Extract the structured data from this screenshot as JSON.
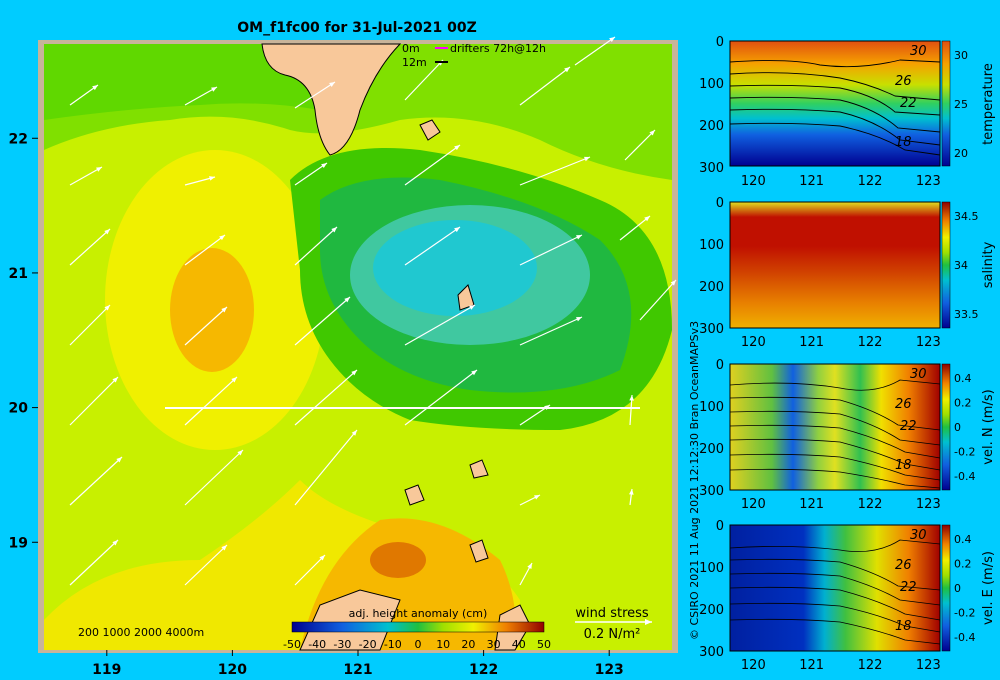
{
  "title": "OM_f1fc00 for 31-Jul-2021 00Z",
  "legend_top": {
    "depth_0": "0m",
    "depth_12": "12m",
    "drifters": "drifters 72h@12h"
  },
  "credit": "© CSIRO 2021   11 Aug 2021 12:12:30 Bran OceanMAPSv3",
  "wind_stress": {
    "label": "wind stress",
    "value": "0.2 N/m²"
  },
  "bathy_legend": "200  1000  2000  4000m",
  "colors": {
    "background": "#00ccff",
    "land": "#f8c89a"
  },
  "chart_data": [
    {
      "type": "heatmap",
      "title": "OM_f1fc00 for 31-Jul-2021 00Z",
      "x_ticks": [
        "119",
        "120",
        "121",
        "122",
        "123"
      ],
      "y_ticks": [
        "19",
        "20",
        "21",
        "22"
      ],
      "xlim": [
        118.5,
        123.5
      ],
      "ylim": [
        18.2,
        22.7
      ],
      "colorbar": {
        "label": "adj. height anomaly (cm)",
        "ticks": [
          "-50",
          "-40",
          "-30",
          "-20",
          "-10",
          "0",
          "10",
          "20",
          "30",
          "40",
          "50"
        ]
      },
      "section_line": {
        "lat": 20.0,
        "lon_start": 119.5,
        "lon_end": 123.2
      }
    },
    {
      "type": "heatmap",
      "ylabel": "temperature",
      "x_ticks": [
        "120",
        "121",
        "122",
        "123"
      ],
      "y_ticks": [
        "0",
        "100",
        "200",
        "300"
      ],
      "colorbar_ticks": [
        "30",
        "25",
        "20"
      ],
      "contour_labels": [
        "30",
        "26",
        "22",
        "18"
      ]
    },
    {
      "type": "heatmap",
      "ylabel": "salinity",
      "x_ticks": [
        "120",
        "121",
        "122",
        "123"
      ],
      "y_ticks": [
        "0",
        "100",
        "200",
        "300"
      ],
      "colorbar_ticks": [
        "34.5",
        "34",
        "33.5"
      ]
    },
    {
      "type": "heatmap",
      "ylabel": "vel. N (m/s)",
      "x_ticks": [
        "120",
        "121",
        "122",
        "123"
      ],
      "y_ticks": [
        "0",
        "100",
        "200",
        "300"
      ],
      "colorbar_ticks": [
        "0.4",
        "0.2",
        "0",
        "-0.2",
        "-0.4"
      ],
      "contour_labels": [
        "30",
        "26",
        "22",
        "18"
      ]
    },
    {
      "type": "heatmap",
      "ylabel": "vel. E (m/s)",
      "x_ticks": [
        "120",
        "121",
        "122",
        "123"
      ],
      "y_ticks": [
        "0",
        "100",
        "200",
        "300"
      ],
      "colorbar_ticks": [
        "0.4",
        "0.2",
        "0",
        "-0.2",
        "-0.4"
      ],
      "contour_labels": [
        "30",
        "26",
        "22",
        "18"
      ]
    }
  ]
}
